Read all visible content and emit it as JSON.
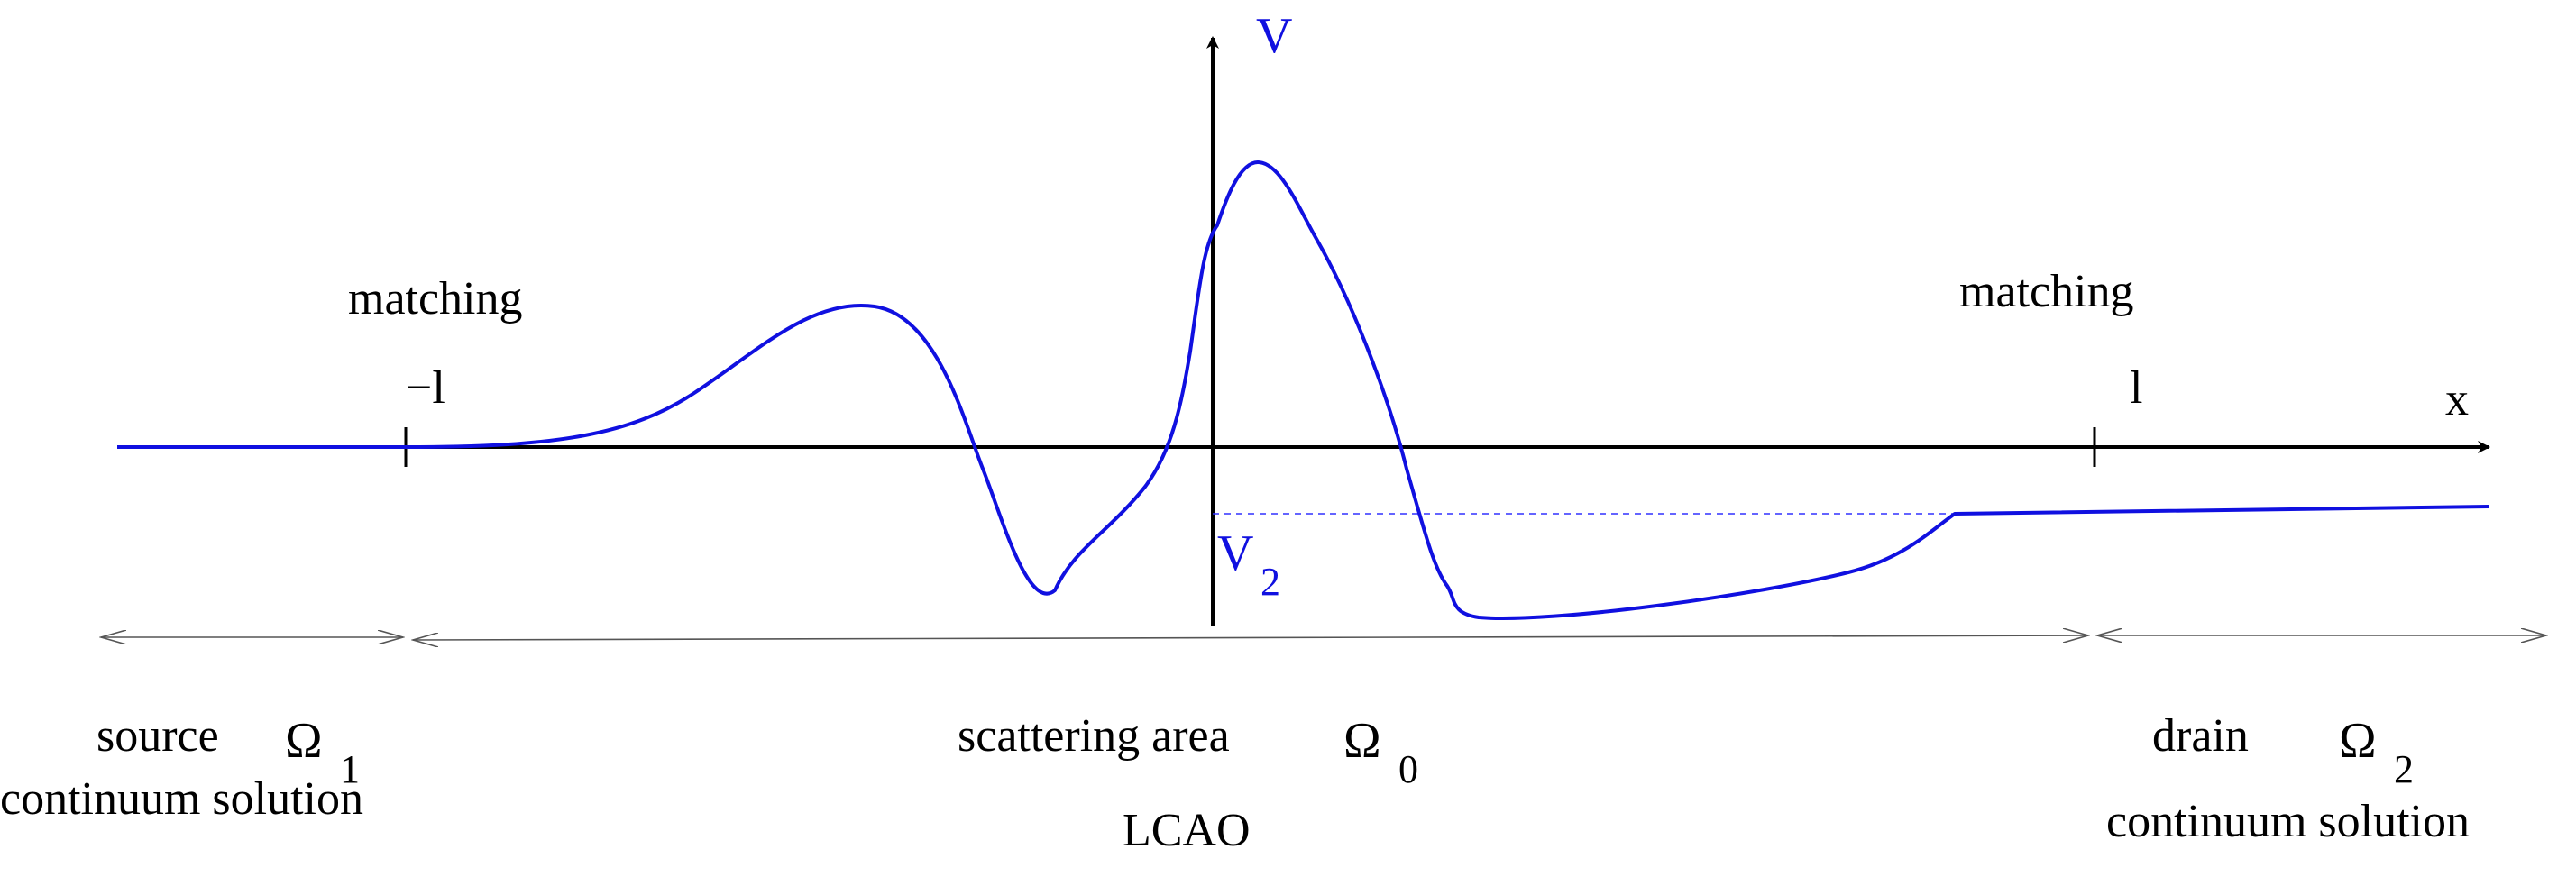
{
  "colors": {
    "axes": "#000000",
    "potential_curve": "#1010e0",
    "region_arrows": "#555555"
  },
  "axes": {
    "y_label": "V",
    "x_label": "x",
    "tick_left_label": "−l",
    "tick_right_label": "l",
    "level_label": "V",
    "level_subscript": "2"
  },
  "matching": {
    "left": "matching",
    "right": "matching"
  },
  "regions": {
    "source": {
      "name": "source",
      "omega": "Ω",
      "omega_subscript": "1",
      "method": "continuum solution"
    },
    "scattering": {
      "name": "scattering area",
      "omega": "Ω",
      "omega_subscript": "0",
      "method": "LCAO"
    },
    "drain": {
      "name": "drain",
      "omega": "Ω",
      "omega_subscript": "2",
      "method": "continuum solution"
    }
  }
}
